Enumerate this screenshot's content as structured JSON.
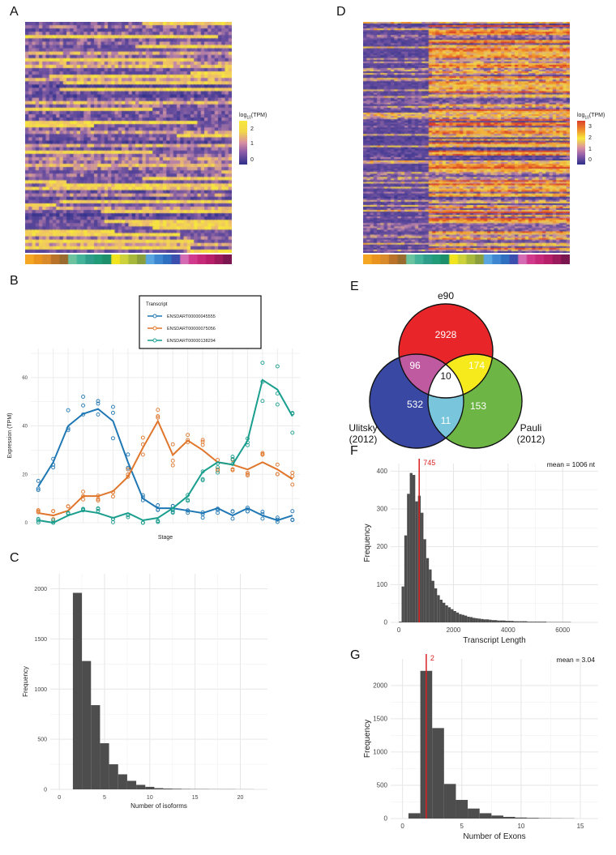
{
  "panels": {
    "a": "A",
    "b": "B",
    "c": "C",
    "d": "D",
    "e": "E",
    "f": "F",
    "g": "G"
  },
  "heatmap_a": {
    "legend_title": "log10(TPM)",
    "legend_ticks": [
      "2",
      "1",
      "0"
    ],
    "stage_colors": [
      "#f5a623",
      "#e8941f",
      "#d98a2b",
      "#b9722a",
      "#9a6b2f",
      "#6cc3a0",
      "#44b39a",
      "#2e9e8a",
      "#229b78",
      "#1d8f6a",
      "#f2e51f",
      "#cdd23a",
      "#a7b83d",
      "#8a9f3c",
      "#5aa6e0",
      "#3f86d1",
      "#2f6fbf",
      "#3c4fae",
      "#d46bb3",
      "#d13a8c",
      "#c52978",
      "#b71f6a",
      "#9b1a5c",
      "#7a1650"
    ],
    "colors": {
      "low": "#2c2f8a",
      "mid": "#b46aa6",
      "high": "#f7e83b"
    }
  },
  "heatmap_d": {
    "legend_title": "log10(TPM)",
    "legend_ticks": [
      "3",
      "2",
      "1",
      "0"
    ]
  },
  "chart_data": [
    {
      "id": "B",
      "type": "line",
      "title": "",
      "xlabel": "Stage",
      "ylabel": "Expression (TPM)",
      "ylim": [
        0,
        72
      ],
      "yticks": [
        0,
        20,
        40,
        60
      ],
      "legend_title": "Transcript",
      "x": [
        1,
        2,
        3,
        4,
        5,
        6,
        7,
        8,
        9,
        10,
        11,
        12,
        13,
        14,
        15,
        16,
        17,
        18
      ],
      "series": [
        {
          "name": "ENSDART00000045555",
          "color": "#1f77b4",
          "values": [
            15,
            25,
            40,
            45,
            47,
            42,
            25,
            10,
            6,
            6,
            5,
            4,
            6,
            3,
            6,
            3,
            1,
            3
          ]
        },
        {
          "name": "ENSDART00000075056",
          "color": "#e0762b",
          "values": [
            4,
            3,
            5,
            11,
            11,
            13,
            19,
            31,
            42,
            28,
            34,
            30,
            25,
            24,
            22,
            25,
            22,
            18
          ]
        },
        {
          "name": "ENSDART00000138294",
          "color": "#1a9e8e",
          "values": [
            1,
            0,
            3,
            5,
            4,
            2,
            4,
            1,
            2,
            6,
            11,
            21,
            25,
            24,
            34,
            59,
            55,
            44
          ]
        }
      ]
    },
    {
      "id": "C",
      "type": "bar",
      "xlabel": "Number of isoforms",
      "ylabel": "Frequency",
      "xlim": [
        -1,
        23
      ],
      "xticks": [
        0,
        5,
        10,
        15,
        20
      ],
      "ylim": [
        0,
        2150
      ],
      "yticks": [
        0,
        500,
        1000,
        1500,
        2000
      ],
      "bin_start": 2,
      "values": [
        1960,
        1280,
        840,
        460,
        250,
        150,
        85,
        45,
        25,
        12,
        8,
        6,
        4,
        3,
        3,
        2,
        2,
        2,
        1,
        1
      ]
    },
    {
      "id": "E",
      "type": "venn",
      "sets": [
        "e90",
        "Ulitsky (2012)",
        "Pauli (2012)"
      ],
      "regions": {
        "e90_only": "2928",
        "ulitsky_only": "532",
        "pauli_only": "153",
        "e90_ulitsky": "96",
        "e90_pauli": "174",
        "ulitsky_pauli": "11",
        "all": "10"
      }
    },
    {
      "id": "F",
      "type": "bar",
      "xlabel": "Transcript Length",
      "ylabel": "Frequency",
      "xlim": [
        -300,
        7300
      ],
      "xticks": [
        0,
        2000,
        4000,
        6000
      ],
      "ylim": [
        0,
        420
      ],
      "yticks": [
        0,
        100,
        200,
        300,
        400
      ],
      "bin_width": 100,
      "bin_start": 0,
      "values": [
        2,
        95,
        230,
        340,
        395,
        390,
        320,
        335,
        290,
        220,
        170,
        140,
        110,
        90,
        72,
        60,
        52,
        45,
        40,
        35,
        30,
        26,
        22,
        20,
        18,
        15,
        14,
        12,
        11,
        10,
        9,
        8,
        8,
        7,
        6,
        6,
        5,
        5,
        5,
        4,
        4,
        4,
        3,
        3,
        3,
        3,
        3,
        2,
        2,
        2,
        2,
        2,
        2,
        2,
        1,
        1,
        1,
        1,
        1,
        1,
        1,
        1,
        1
      ],
      "median_line": 745,
      "median_label": "745",
      "mean_label": "mean = 1006 nt"
    },
    {
      "id": "G",
      "type": "bar",
      "xlabel": "Number of Exons",
      "ylabel": "Frequency",
      "xlim": [
        -1,
        16.5
      ],
      "xticks": [
        0,
        5,
        10,
        15
      ],
      "ylim": [
        0,
        2400
      ],
      "yticks": [
        0,
        500,
        1000,
        1500,
        2000
      ],
      "bin_start": 1,
      "values": [
        80,
        2220,
        1360,
        520,
        280,
        150,
        80,
        45,
        25,
        15,
        10,
        6,
        4,
        3
      ],
      "median_line": 2,
      "median_label": "2",
      "mean_label": "mean = 3.04"
    }
  ]
}
